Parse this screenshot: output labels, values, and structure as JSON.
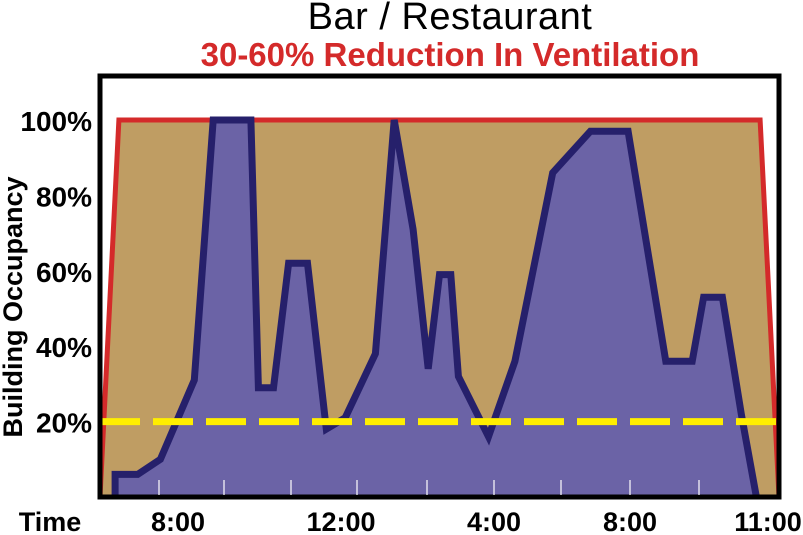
{
  "chart_data": {
    "type": "area",
    "title": "Bar / Restaurant",
    "subtitle": "30-60% Reduction In Ventilation",
    "ylabel": "Building Occupancy",
    "xlabel": "Time",
    "y_ticks": [
      "20%",
      "40%",
      "60%",
      "80%",
      "100%"
    ],
    "x_ticks": [
      "8:00",
      "12:00",
      "4:00",
      "8:00",
      "11:00"
    ],
    "ylim": [
      0,
      100
    ],
    "colors": {
      "ventilation_fill": "#bf9d63",
      "ventilation_line": "#d42a2a",
      "occupancy_fill": "#6b63a6",
      "occupancy_line": "#26206b",
      "reduced_line": "#ffee00"
    },
    "series": [
      {
        "type": "area",
        "role": "ventilation",
        "x": [
          6.0,
          6.5,
          23.5,
          24.0
        ],
        "values": [
          0,
          100,
          100,
          0
        ]
      },
      {
        "type": "area",
        "role": "occupancy",
        "x": [
          6.4,
          7.0,
          7.6,
          8.5,
          9.0,
          10.0,
          10.2,
          10.6,
          11.0,
          11.5,
          12.0,
          12.5,
          13.3,
          13.8,
          14.3,
          14.7,
          15.0,
          15.3,
          15.5,
          16.3,
          17.0,
          18.0,
          19.0,
          20.0,
          21.0,
          21.7,
          22.0,
          22.5,
          23.0,
          23.4
        ],
        "values": [
          6,
          6,
          10,
          31,
          100,
          100,
          29,
          29,
          62,
          62,
          18,
          21,
          38,
          100,
          71,
          34,
          59,
          59,
          32,
          16,
          36,
          86,
          97,
          97,
          36,
          36,
          53,
          53,
          22,
          0
        ]
      },
      {
        "type": "line",
        "role": "reduced-ventilation",
        "x": [
          6.0,
          24.0
        ],
        "values": [
          20,
          20
        ]
      }
    ]
  }
}
